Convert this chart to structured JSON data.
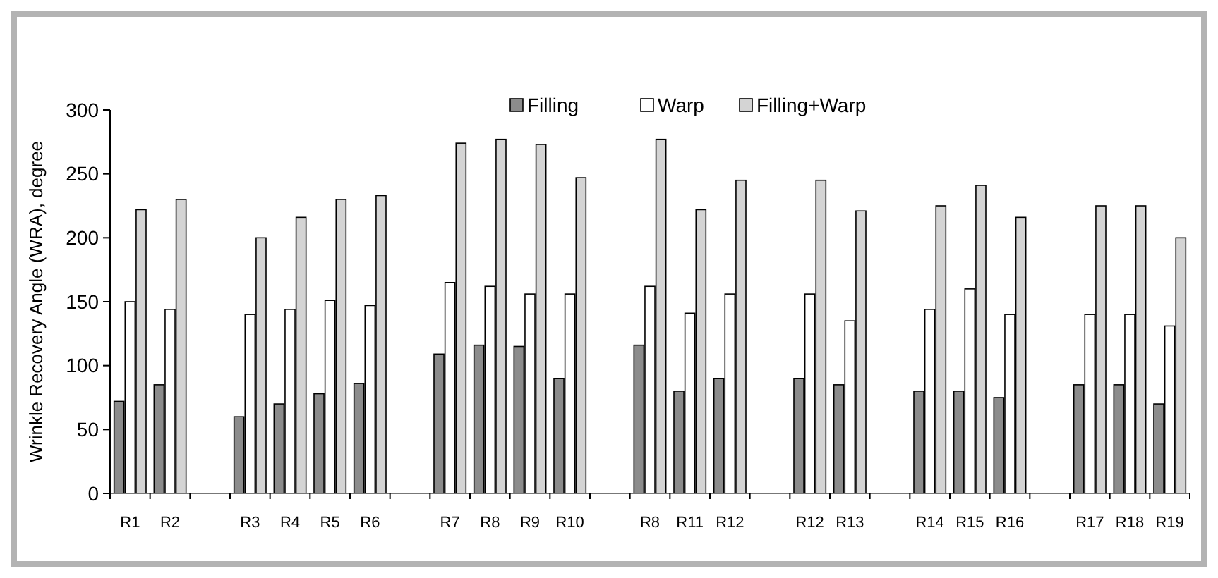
{
  "chart_data": {
    "type": "bar",
    "ylabel": "Wrinkle Recovery Angle (WRA), degree",
    "categories": [
      "R1",
      "R2",
      null,
      "R3",
      "R4",
      "R5",
      "R6",
      null,
      "R7",
      "R8",
      "R9",
      "R10",
      null,
      "R8",
      "R11",
      "R12",
      null,
      "R12",
      "R13",
      null,
      "R14",
      "R15",
      "R16",
      null,
      "R17",
      "R18",
      "R19"
    ],
    "series": [
      {
        "name": "Filling",
        "color": "#8c8c8c",
        "values": [
          72,
          85,
          null,
          60,
          70,
          78,
          86,
          null,
          109,
          116,
          115,
          90,
          null,
          116,
          80,
          90,
          null,
          90,
          85,
          null,
          80,
          80,
          75,
          null,
          85,
          85,
          70
        ]
      },
      {
        "name": "Warp",
        "color": "#ffffff",
        "values": [
          150,
          144,
          null,
          140,
          144,
          151,
          147,
          null,
          165,
          162,
          156,
          156,
          null,
          162,
          141,
          156,
          null,
          156,
          135,
          null,
          144,
          160,
          140,
          null,
          140,
          140,
          131
        ]
      },
      {
        "name": "Filling+Warp",
        "color": "#d4d4d4",
        "values": [
          222,
          230,
          null,
          200,
          216,
          230,
          233,
          null,
          274,
          277,
          273,
          247,
          null,
          277,
          222,
          245,
          null,
          245,
          221,
          null,
          225,
          241,
          216,
          null,
          225,
          225,
          200
        ]
      }
    ],
    "ylim": [
      0,
      300
    ],
    "yticks": [
      0,
      50,
      100,
      150,
      200,
      250,
      300
    ],
    "grid": false,
    "legend": "top"
  }
}
